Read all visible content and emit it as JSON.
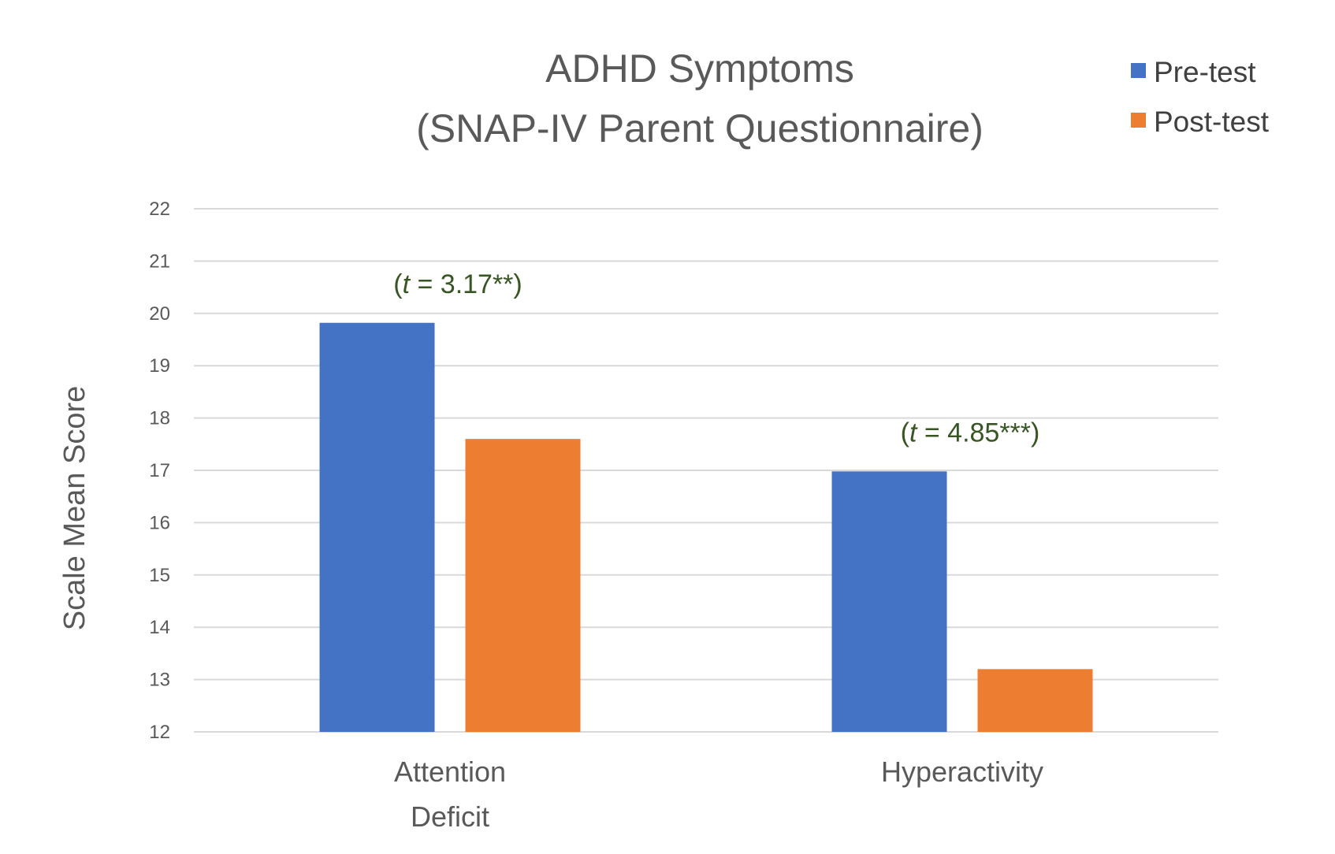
{
  "chart_data": {
    "type": "bar",
    "title": "ADHD Symptoms",
    "subtitle": "(SNAP-IV Parent Questionnaire)",
    "xlabel": "",
    "ylabel": "Scale Mean Score",
    "ylim": [
      12,
      22
    ],
    "yticks": [
      "12",
      "13",
      "14",
      "15",
      "16",
      "17",
      "18",
      "19",
      "20",
      "21",
      "22"
    ],
    "grid": "horizontal",
    "legend_position": "top-right",
    "categories": [
      [
        "Attention",
        "Deficit"
      ],
      [
        "Hyperactivity"
      ]
    ],
    "series": [
      {
        "name": "Pre-test",
        "color": "#4472c4",
        "values": [
          19.82,
          16.98
        ]
      },
      {
        "name": "Post-test",
        "color": "#ed7d31",
        "values": [
          17.6,
          13.2
        ]
      }
    ],
    "annotations": [
      {
        "category_index": 0,
        "prefix": "(",
        "italic": "t",
        "suffix": " = 3.17**)"
      },
      {
        "category_index": 1,
        "prefix": "(",
        "italic": "t",
        "suffix": " = 4.85***)"
      }
    ]
  }
}
